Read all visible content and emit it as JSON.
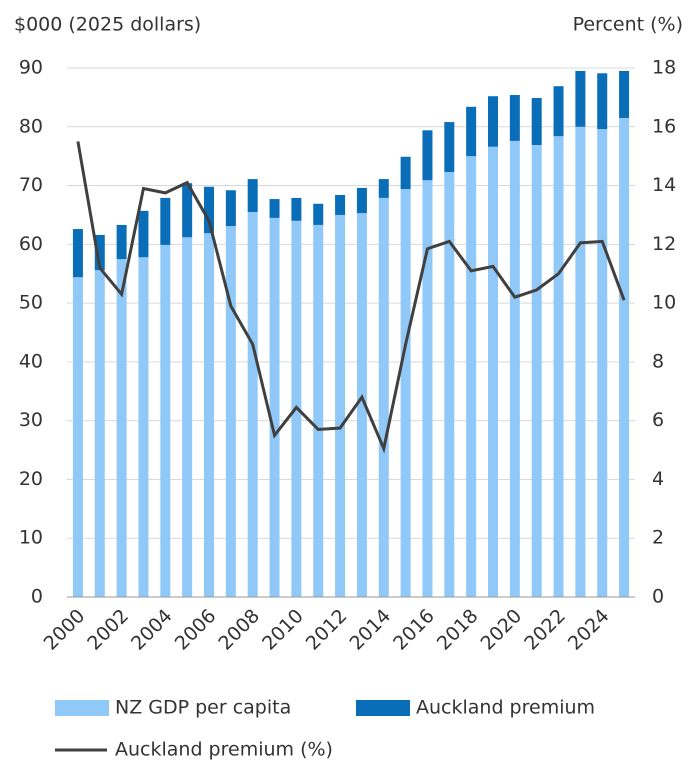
{
  "chart_data": {
    "type": "bar",
    "stacked": true,
    "y_label": "$000 (2025 dollars)",
    "y2_label": "Percent (%)",
    "categories": [
      "2000",
      null,
      "2002",
      null,
      "2004",
      null,
      "2006",
      null,
      "2008",
      null,
      "2010",
      null,
      "2012",
      null,
      "2014",
      null,
      "2016",
      null,
      "2018",
      null,
      "2020",
      null,
      "2022",
      null,
      "2024",
      null
    ],
    "series": [
      {
        "name": "NZ GDP per capita",
        "color": "#90c8f8",
        "type": "bar",
        "values": [
          54.4,
          55.6,
          57.5,
          57.8,
          59.9,
          61.2,
          61.9,
          63.1,
          65.5,
          64.5,
          64.0,
          63.3,
          65.0,
          65.3,
          67.9,
          69.4,
          70.9,
          72.3,
          75.0,
          76.6,
          77.6,
          76.9,
          78.4,
          80.0,
          79.6,
          81.5
        ]
      },
      {
        "name": "Auckland premium",
        "color": "#0a6db7",
        "type": "bar",
        "values": [
          8.2,
          6.0,
          5.8,
          7.9,
          8.0,
          9.2,
          7.9,
          6.1,
          5.6,
          3.2,
          3.9,
          3.6,
          3.4,
          4.3,
          3.2,
          5.5,
          8.5,
          8.5,
          8.4,
          8.6,
          7.8,
          8.0,
          8.5,
          9.5,
          9.5,
          8.0
        ]
      },
      {
        "name": "Auckland premium (%)",
        "color": "#404040",
        "type": "line",
        "axis": "y2",
        "values": [
          15.5,
          11.2,
          10.3,
          13.9,
          13.75,
          14.1,
          12.8,
          9.9,
          8.6,
          5.5,
          6.45,
          5.7,
          5.75,
          6.8,
          5.05,
          8.6,
          11.85,
          12.1,
          11.1,
          11.25,
          10.2,
          10.45,
          11.0,
          12.05,
          12.1,
          10.1
        ]
      }
    ],
    "ylim": [
      0,
      90
    ],
    "yticks": [
      0,
      10,
      20,
      30,
      40,
      50,
      60,
      70,
      80,
      90
    ],
    "y2lim": [
      0,
      18
    ],
    "y2ticks": [
      0,
      2,
      4,
      6,
      8,
      10,
      12,
      14,
      16,
      18
    ],
    "grid": true,
    "legend": "bottom"
  }
}
